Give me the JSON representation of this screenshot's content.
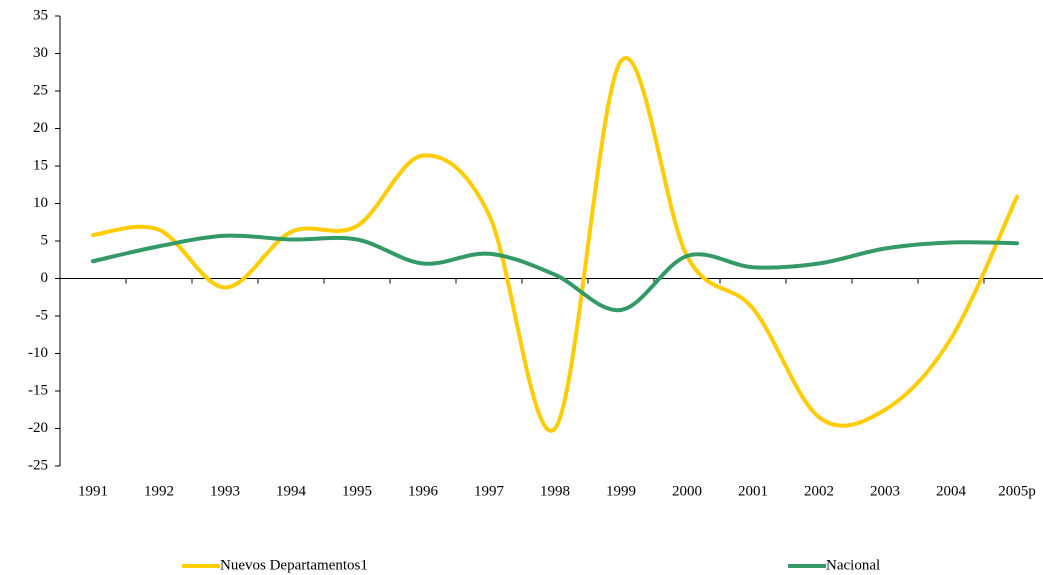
{
  "chart_data": {
    "type": "line",
    "categories": [
      "1991",
      "1992",
      "1993",
      "1994",
      "1995",
      "1996",
      "1997",
      "1998",
      "1999",
      "2000",
      "2001",
      "2002",
      "2003",
      "2004",
      "2005p"
    ],
    "series": [
      {
        "name": "Nuevos Departamentos1",
        "color": "#ffcc00",
        "values": [
          5.8,
          6.5,
          -1.2,
          6.2,
          7.0,
          16.4,
          8.5,
          -20.0,
          29.0,
          3.0,
          -4.0,
          -18.5,
          -17.5,
          -8.0,
          10.9
        ]
      },
      {
        "name": "Nacional",
        "color": "#339966",
        "values": [
          2.3,
          4.3,
          5.7,
          5.2,
          5.2,
          2.0,
          3.3,
          0.5,
          -4.2,
          3.0,
          1.5,
          2.0,
          4.0,
          4.8,
          4.7
        ]
      }
    ],
    "ylim": [
      -25,
      35
    ],
    "yticks": [
      -25,
      -20,
      -15,
      -10,
      -5,
      0,
      5,
      10,
      15,
      20,
      25,
      30,
      35
    ]
  }
}
